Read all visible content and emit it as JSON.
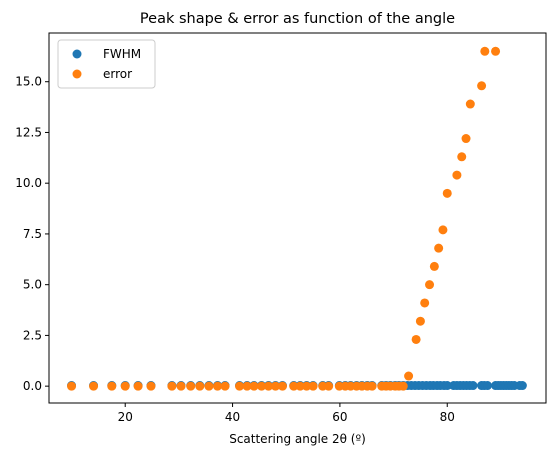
{
  "chart_data": {
    "type": "scatter",
    "title": "Peak shape & error as function of the angle",
    "xlabel": "Scattering angle 2θ (º)",
    "ylabel": "",
    "xlim": [
      5.8,
      98.4
    ],
    "ylim": [
      -0.83,
      17.4
    ],
    "xticks": [
      20,
      40,
      60,
      80
    ],
    "xtick_labels": [
      "20",
      "40",
      "60",
      "80"
    ],
    "yticks": [
      0.0,
      2.5,
      5.0,
      7.5,
      10.0,
      12.5,
      15.0
    ],
    "ytick_labels": [
      "0.0",
      "2.5",
      "5.0",
      "7.5",
      "10.0",
      "12.5",
      "15.0"
    ],
    "grid": false,
    "legend_position": "top-left",
    "series": [
      {
        "name": "FWHM",
        "color": "#1f77b4",
        "x": [
          10.0,
          14.1,
          17.5,
          20.0,
          22.4,
          24.8,
          28.7,
          30.4,
          32.2,
          33.9,
          35.6,
          37.2,
          38.6,
          41.3,
          42.7,
          44.0,
          45.4,
          46.7,
          48.0,
          49.3,
          51.4,
          52.6,
          53.8,
          55.0,
          56.8,
          57.9,
          59.9,
          61.0,
          62.0,
          63.1,
          64.1,
          65.1,
          66.0,
          67.8,
          68.6,
          69.4,
          70.3,
          71.0,
          71.8,
          72.6,
          73.3,
          74.0,
          74.7,
          75.4,
          76.1,
          76.8,
          77.4,
          78.1,
          78.7,
          79.4,
          80.0,
          81.2,
          81.8,
          82.4,
          83.0,
          83.6,
          84.2,
          84.8,
          86.4,
          86.9,
          87.5,
          89.0,
          89.5,
          90.0,
          90.5,
          91.0,
          91.5,
          92.0,
          92.5,
          93.5,
          94.0
        ],
        "y": [
          0.03,
          0.03,
          0.03,
          0.03,
          0.03,
          0.03,
          0.03,
          0.03,
          0.03,
          0.03,
          0.03,
          0.03,
          0.03,
          0.03,
          0.03,
          0.03,
          0.03,
          0.03,
          0.03,
          0.03,
          0.03,
          0.03,
          0.03,
          0.03,
          0.03,
          0.03,
          0.03,
          0.03,
          0.03,
          0.03,
          0.03,
          0.03,
          0.03,
          0.03,
          0.03,
          0.03,
          0.03,
          0.03,
          0.03,
          0.03,
          0.03,
          0.03,
          0.03,
          0.03,
          0.03,
          0.03,
          0.03,
          0.03,
          0.03,
          0.03,
          0.03,
          0.03,
          0.03,
          0.03,
          0.03,
          0.03,
          0.03,
          0.03,
          0.03,
          0.03,
          0.03,
          0.03,
          0.03,
          0.03,
          0.03,
          0.03,
          0.03,
          0.03,
          0.03,
          0.03,
          0.03
        ]
      },
      {
        "name": "error",
        "color": "#ff7f0e",
        "x": [
          10.0,
          14.1,
          17.5,
          20.0,
          22.4,
          24.8,
          28.7,
          30.4,
          32.2,
          33.9,
          35.6,
          37.2,
          38.6,
          41.3,
          42.7,
          44.0,
          45.4,
          46.7,
          48.0,
          49.3,
          51.4,
          52.6,
          53.8,
          55.0,
          56.8,
          57.9,
          59.9,
          61.0,
          62.0,
          63.1,
          64.1,
          65.1,
          66.0,
          67.8,
          68.6,
          69.4,
          70.3,
          71.0,
          71.8,
          72.8,
          74.2,
          75.0,
          75.8,
          76.7,
          77.6,
          78.4,
          79.2,
          80.0,
          81.8,
          82.7,
          83.5,
          84.3,
          86.4,
          87.0,
          89.0
        ],
        "y": [
          0.0,
          0.0,
          0.0,
          0.0,
          0.0,
          0.0,
          0.0,
          0.0,
          0.0,
          0.0,
          0.0,
          0.0,
          0.0,
          0.0,
          0.0,
          0.0,
          0.0,
          0.0,
          0.0,
          0.0,
          0.0,
          0.0,
          0.0,
          0.0,
          0.0,
          0.0,
          0.0,
          0.0,
          0.0,
          0.0,
          0.0,
          0.0,
          0.0,
          0.0,
          0.0,
          0.0,
          0.0,
          0.0,
          0.0,
          0.5,
          2.3,
          3.2,
          4.1,
          5.0,
          5.9,
          6.8,
          7.7,
          9.5,
          10.4,
          11.3,
          12.2,
          13.9,
          14.8,
          16.5,
          16.5
        ]
      }
    ]
  }
}
